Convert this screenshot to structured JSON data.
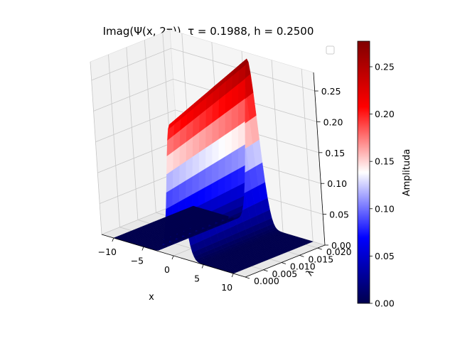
{
  "chart_data": {
    "type": "surface3d",
    "title": "Imag(Ψ(x, 2τ)), τ = 0.1988, h = 0.2500",
    "xlabel": "x",
    "ylabel": "λ",
    "xlim": [
      -12,
      12
    ],
    "ylim": [
      0,
      0.022
    ],
    "zlim": [
      0,
      0.28
    ],
    "x_ticks": [
      -10,
      -5,
      0,
      5,
      10
    ],
    "x_tick_labels": [
      "−10",
      "−5",
      "0",
      "5",
      "10"
    ],
    "y_ticks": [
      0.0,
      0.005,
      0.01,
      0.015,
      0.02
    ],
    "y_tick_labels": [
      "0.000",
      "0.005",
      "0.010",
      "0.015",
      "0.020"
    ],
    "z_ticks": [
      0.0,
      0.05,
      0.1,
      0.15,
      0.2,
      0.25
    ],
    "z_tick_labels": [
      "0.00",
      "0.05",
      "0.10",
      "0.15",
      "0.20",
      "0.25"
    ],
    "colormap": "seismic",
    "colors": {
      "low": "#00004d",
      "mid_low": "#0000ff",
      "mid": "#ffffff",
      "mid_high": "#ff0000",
      "high": "#800000"
    },
    "grid": true,
    "legend": "top-right",
    "surface": {
      "peak_x": 0.8,
      "width": 1.5,
      "lambda_range": [
        0,
        0.022
      ],
      "z_min": 0.0,
      "z_max_at_lambda0": 0.215,
      "z_max_at_lambda_max": 0.27
    },
    "colorbar": {
      "label": "Amplituda",
      "range": [
        0.0,
        0.277
      ],
      "ticks": [
        0.0,
        0.05,
        0.1,
        0.15,
        0.2,
        0.25
      ],
      "tick_labels": [
        "0.00",
        "0.05",
        "0.10",
        "0.15",
        "0.20",
        "0.25"
      ]
    }
  }
}
